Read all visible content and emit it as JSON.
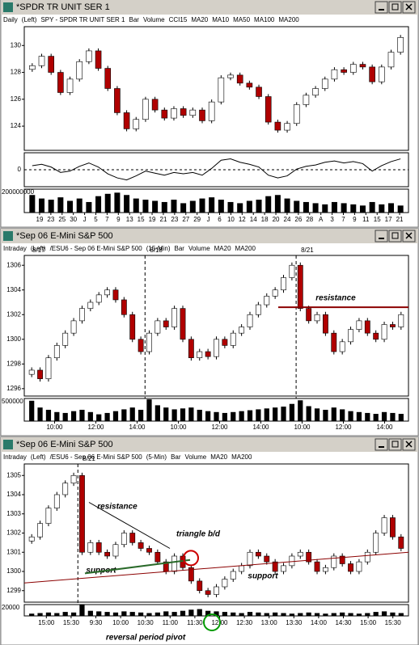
{
  "windows": [
    {
      "title": "*SPDR TR UNIT SER 1",
      "legend": [
        {
          "text": "Daily",
          "color": "#000000"
        },
        {
          "text": "(Left)",
          "color": "#000000"
        },
        {
          "text": "SPY - SPDR TR UNIT SER 1",
          "color": "#000000"
        },
        {
          "text": "Bar",
          "color": "#000000"
        },
        {
          "text": "Volume",
          "color": "#000000"
        },
        {
          "text": "CCI15",
          "color": "#000000"
        },
        {
          "text": "MA20",
          "color": "#cc0000"
        },
        {
          "text": "MA10",
          "color": "#008800"
        },
        {
          "text": "MA50",
          "color": "#999900"
        },
        {
          "text": "MA100",
          "color": "#000080"
        },
        {
          "text": "MA200",
          "color": "#cc00cc"
        }
      ],
      "price": {
        "ylim": [
          122.2,
          131.4
        ],
        "yticks": [
          124,
          126,
          128,
          130
        ],
        "closes": [
          128.5,
          129.2,
          128.0,
          126.5,
          127.5,
          128.8,
          129.6,
          128.3,
          126.8,
          125.0,
          123.8,
          124.5,
          126.0,
          125.2,
          124.6,
          125.3,
          124.8,
          125.2,
          124.4,
          125.8,
          127.6,
          127.8,
          127.2,
          126.9,
          126.2,
          124.3,
          123.7,
          124.2,
          125.6,
          126.3,
          126.8,
          127.5,
          128.2,
          128.0,
          128.6,
          128.4,
          127.3,
          128.4,
          129.5,
          130.6
        ]
      },
      "oscillator": {
        "ylim": [
          -250,
          250
        ],
        "yticks": [
          0
        ],
        "values": [
          60,
          80,
          40,
          -40,
          -20,
          50,
          100,
          40,
          -60,
          -120,
          -150,
          -90,
          -20,
          -50,
          -80,
          -40,
          -60,
          -40,
          -80,
          20,
          140,
          160,
          110,
          80,
          40,
          -80,
          -120,
          -90,
          10,
          50,
          70,
          110,
          130,
          100,
          120,
          90,
          -20,
          60,
          120,
          160
        ]
      },
      "volume": {
        "ylim": [
          0,
          200000000
        ],
        "yticks": [
          {
            "value": 200000000,
            "label": "200000000"
          }
        ],
        "values": [
          150000000,
          120000000,
          110000000,
          130000000,
          100000000,
          120000000,
          90000000,
          140000000,
          160000000,
          170000000,
          150000000,
          120000000,
          110000000,
          100000000,
          90000000,
          110000000,
          80000000,
          100000000,
          120000000,
          130000000,
          110000000,
          90000000,
          80000000,
          100000000,
          110000000,
          140000000,
          150000000,
          120000000,
          100000000,
          90000000,
          80000000,
          70000000,
          90000000,
          80000000,
          70000000,
          60000000,
          90000000,
          70000000,
          80000000,
          60000000
        ]
      },
      "xlabels": [
        "19",
        "23",
        "25",
        "30",
        "J",
        "5",
        "7",
        "9",
        "13",
        "15",
        "19",
        "21",
        "23",
        "27",
        "29",
        "J",
        "6",
        "10",
        "12",
        "14",
        "18",
        "20",
        "24",
        "26",
        "28",
        "A",
        "3",
        "7",
        "9",
        "11",
        "15",
        "17",
        "21"
      ],
      "annotations": []
    },
    {
      "title": "*Sep 06  E-Mini S&P 500",
      "legend": [
        {
          "text": "Intraday",
          "color": "#000000"
        },
        {
          "text": "(Left)",
          "color": "#000000"
        },
        {
          "text": "/ESU6 - Sep 06 E-Mini S&P 500",
          "color": "#000000"
        },
        {
          "text": "(15-Min)",
          "color": "#000000"
        },
        {
          "text": "Bar",
          "color": "#000000"
        },
        {
          "text": "Volume",
          "color": "#000000"
        },
        {
          "text": "MA20",
          "color": "#000000"
        },
        {
          "text": "MA200",
          "color": "#cc0000"
        }
      ],
      "sessions": [
        "8/17",
        "8/18",
        "8/21"
      ],
      "price": {
        "ylim": [
          1295.4,
          1306.8
        ],
        "yticks": [
          1296,
          1298,
          1300,
          1302,
          1304,
          1306
        ],
        "closes": [
          1297.5,
          1296.8,
          1298.5,
          1299.5,
          1300.5,
          1301.5,
          1302.5,
          1303.0,
          1303.6,
          1304.0,
          1303.2,
          1302.0,
          1300.0,
          1299.0,
          1300.5,
          1301.5,
          1301.0,
          1302.5,
          1300.0,
          1298.5,
          1299.0,
          1298.6,
          1300.0,
          1299.5,
          1300.5,
          1301.0,
          1302.0,
          1302.8,
          1303.5,
          1304.0,
          1305.0,
          1306.0,
          1302.5,
          1301.5,
          1302.0,
          1300.5,
          1299.0,
          1299.8,
          1300.8,
          1301.5,
          1300.5,
          1300.0,
          1301.2,
          1301.0,
          1302.0
        ]
      },
      "volume": {
        "ylim": [
          0,
          500000
        ],
        "yticks": [
          500000
        ],
        "values": [
          450000,
          300000,
          250000,
          200000,
          180000,
          220000,
          250000,
          200000,
          150000,
          180000,
          220000,
          260000,
          300000,
          250000,
          480000,
          350000,
          300000,
          260000,
          280000,
          300000,
          250000,
          220000,
          200000,
          180000,
          200000,
          220000,
          240000,
          260000,
          280000,
          300000,
          320000,
          380000,
          460000,
          330000,
          280000,
          250000,
          300000,
          260000,
          220000,
          200000,
          180000,
          160000,
          200000,
          180000,
          160000
        ]
      },
      "xlabels": [
        "10:00",
        "12:00",
        "14:00",
        "10:00",
        "12:00",
        "14:00",
        "10:00",
        "12:00",
        "14:00"
      ],
      "annotations": [
        {
          "text": "resistance",
          "color": "#990000"
        }
      ]
    },
    {
      "title": "*Sep 06  E-Mini S&P 500",
      "legend": [
        {
          "text": "Intraday",
          "color": "#000000"
        },
        {
          "text": "(Left)",
          "color": "#000000"
        },
        {
          "text": "/ESU6 - Sep 06 E-Mini S&P 500",
          "color": "#000000"
        },
        {
          "text": "(5-Min)",
          "color": "#000000"
        },
        {
          "text": "Bar",
          "color": "#000000"
        },
        {
          "text": "Volume",
          "color": "#000000"
        },
        {
          "text": "MA20",
          "color": "#000000"
        },
        {
          "text": "MA200",
          "color": "#cc0000"
        }
      ],
      "sessions": [
        "8/21"
      ],
      "price": {
        "ylim": [
          1298.4,
          1305.6
        ],
        "yticks": [
          1299,
          1300,
          1301,
          1302,
          1303,
          1304,
          1305
        ],
        "closes": [
          1301.8,
          1302.5,
          1303.3,
          1304.0,
          1304.6,
          1305.0,
          1301.0,
          1301.5,
          1301.0,
          1300.8,
          1301.4,
          1302.0,
          1301.5,
          1301.2,
          1301.0,
          1300.5,
          1300.0,
          1300.8,
          1300.2,
          1299.5,
          1299.0,
          1298.8,
          1299.2,
          1299.6,
          1300.0,
          1300.3,
          1301.0,
          1300.8,
          1300.5,
          1300.0,
          1300.3,
          1300.8,
          1301.0,
          1300.5,
          1300.0,
          1300.2,
          1300.8,
          1300.4,
          1300.0,
          1300.5,
          1301.0,
          1302.0,
          1302.8,
          1301.8,
          1301.2
        ]
      },
      "volume": {
        "ylim": [
          0,
          20000
        ],
        "yticks": [
          20000
        ],
        "values": [
          4000,
          5000,
          6000,
          5000,
          7000,
          6000,
          20000,
          9000,
          8000,
          7000,
          6000,
          8000,
          7000,
          6000,
          5000,
          6000,
          8000,
          7000,
          9000,
          11000,
          12000,
          9000,
          8000,
          7000,
          6000,
          5000,
          7000,
          6000,
          5000,
          6000,
          5000,
          4000,
          5000,
          6000,
          5000,
          4000,
          5000,
          6000,
          5000,
          4000,
          5000,
          7000,
          8000,
          6000,
          5000
        ]
      },
      "xlabels": [
        "15:00",
        "15:30",
        "9:30",
        "10:00",
        "10:30",
        "11:00",
        "11:30",
        "12:00",
        "12:30",
        "13:00",
        "13:30",
        "14:00",
        "14:30",
        "15:00",
        "15:30"
      ],
      "annotations": [
        {
          "text": "resistance",
          "color": "#990000"
        },
        {
          "text": "triangle b/d",
          "color": "#990000"
        },
        {
          "text": "support",
          "color": "#006600"
        },
        {
          "text": "support",
          "color": "#006600"
        },
        {
          "text": "reversal period pivot",
          "color": "#006600"
        }
      ]
    }
  ]
}
